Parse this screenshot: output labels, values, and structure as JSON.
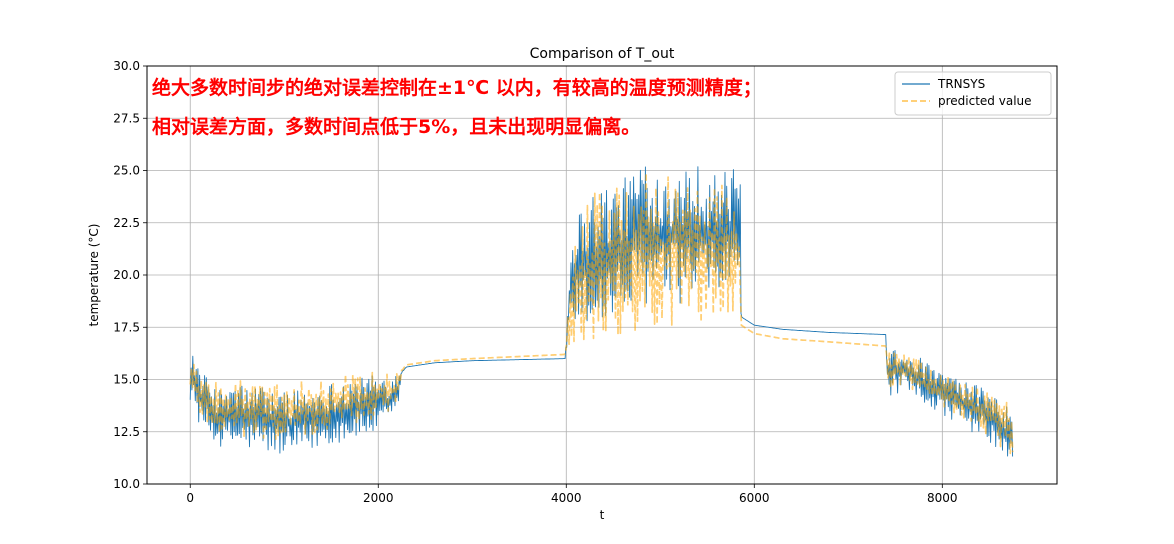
{
  "chart_data": {
    "type": "line",
    "title": "Comparison of T_out",
    "xlabel": "t",
    "ylabel": "temperature (°C)",
    "xlim": [
      -460,
      9220
    ],
    "ylim": [
      10.0,
      30.0
    ],
    "xticks": [
      0,
      2000,
      4000,
      6000,
      8000
    ],
    "xtick_labels": [
      "0",
      "2000",
      "4000",
      "6000",
      "8000"
    ],
    "yticks": [
      10.0,
      12.5,
      15.0,
      17.5,
      20.0,
      22.5,
      25.0,
      27.5,
      30.0
    ],
    "ytick_labels": [
      "10.0",
      "12.5",
      "15.0",
      "17.5",
      "20.0",
      "22.5",
      "25.0",
      "27.5",
      "30.0"
    ],
    "grid": true,
    "legend_position": "top-right",
    "series": [
      {
        "name": "TRNSYS",
        "color": "#1f77b4",
        "style": "solid",
        "envelope": {
          "x": [
            0,
            100,
            300,
            500,
            800,
            1000,
            1300,
            1600,
            1900,
            2100,
            2200,
            2250,
            2300,
            2600,
            3000,
            3500,
            3990,
            4050,
            4300,
            4600,
            4800,
            5000,
            5300,
            5600,
            5850,
            5860,
            6000,
            6300,
            6800,
            7400,
            7410,
            7600,
            7900,
            8200,
            8500,
            8750
          ],
          "low": [
            14.0,
            12.8,
            11.8,
            11.7,
            11.5,
            11.3,
            11.6,
            12.0,
            12.3,
            12.6,
            13.3,
            15.3,
            15.6,
            15.8,
            15.9,
            15.95,
            16.0,
            17.5,
            17.3,
            17.8,
            18.5,
            18.8,
            18.6,
            18.8,
            19.5,
            18.0,
            17.6,
            17.4,
            17.25,
            17.15,
            14.2,
            14.3,
            13.6,
            12.8,
            12.0,
            10.7
          ],
          "high": [
            17.0,
            15.5,
            14.5,
            14.8,
            14.7,
            14.5,
            14.6,
            15.0,
            15.2,
            15.3,
            15.4,
            15.4,
            15.6,
            15.8,
            15.9,
            15.95,
            16.0,
            22.5,
            24.3,
            24.5,
            25.8,
            25.0,
            25.5,
            25.0,
            25.1,
            18.0,
            17.6,
            17.4,
            17.25,
            17.15,
            16.6,
            16.6,
            15.6,
            15.0,
            14.5,
            13.5
          ]
        }
      },
      {
        "name": "predicted value",
        "color": "#ffa500",
        "style": "dashed",
        "envelope": {
          "x": [
            0,
            100,
            300,
            500,
            800,
            1000,
            1300,
            1600,
            1900,
            2100,
            2200,
            2250,
            2300,
            2600,
            3000,
            3500,
            3990,
            4050,
            4300,
            4600,
            4800,
            5000,
            5300,
            5600,
            5850,
            5860,
            6000,
            6300,
            6800,
            7400,
            7410,
            7600,
            7900,
            8200,
            8500,
            8750
          ],
          "low": [
            14.2,
            13.3,
            12.3,
            12.3,
            12.1,
            12.0,
            12.3,
            12.7,
            13.0,
            13.3,
            13.8,
            15.4,
            15.7,
            15.9,
            16.0,
            16.1,
            16.2,
            16.3,
            16.8,
            17.0,
            17.2,
            17.3,
            17.3,
            17.4,
            17.7,
            17.6,
            17.2,
            16.95,
            16.8,
            16.6,
            14.6,
            14.6,
            14.0,
            13.1,
            12.2,
            11.2
          ],
          "high": [
            16.5,
            15.2,
            14.8,
            15.0,
            14.9,
            14.8,
            15.0,
            15.3,
            15.4,
            15.5,
            15.5,
            15.5,
            15.7,
            15.9,
            16.0,
            16.1,
            16.2,
            22.0,
            24.0,
            24.4,
            25.0,
            24.8,
            24.8,
            24.5,
            24.2,
            17.6,
            17.2,
            16.95,
            16.8,
            16.6,
            16.6,
            16.4,
            15.5,
            14.8,
            14.8,
            13.8
          ]
        }
      }
    ]
  },
  "annotations": [
    "绝大多数时间步的绝对误差控制在±1℃ 以内，有较高的温度预测精度；",
    "相对误差方面，多数时间点低于5%，且未出现明显偏离。"
  ]
}
